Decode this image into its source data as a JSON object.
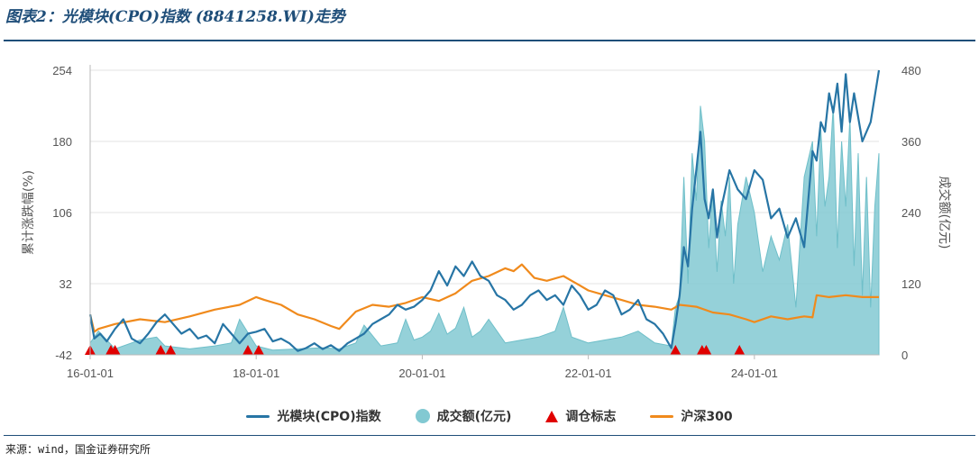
{
  "title": "图表2：光模块(CPO)指数 (8841258.WI)走势",
  "source": "来源：wind，国金证券研究所",
  "colors": {
    "index": "#2775a5",
    "volume": "#82c9d2",
    "marker": "#e00000",
    "hs300": "#f08a1c",
    "rule": "#1f4e79"
  },
  "chart_data": {
    "type": "line",
    "left_axis": {
      "label": "累计涨跌幅(%)",
      "ticks": [
        "254",
        "180",
        "106",
        "32",
        "-42"
      ],
      "range": [
        -42,
        254
      ]
    },
    "right_axis": {
      "label": "成交额(亿元)",
      "ticks": [
        "480",
        "360",
        "240",
        "120",
        "0"
      ],
      "range": [
        0,
        480
      ]
    },
    "x_ticks": [
      "16-01-01",
      "18-01-01",
      "20-01-01",
      "22-01-01",
      "24-01-01"
    ],
    "x_range": [
      2016.0,
      2025.5
    ],
    "legend": [
      {
        "name": "光模块(CPO)指数",
        "kind": "line",
        "color": "#2775a5"
      },
      {
        "name": "成交额(亿元)",
        "kind": "dot",
        "color": "#82c9d2"
      },
      {
        "name": "调仓标志",
        "kind": "triangle",
        "color": "#e00000"
      },
      {
        "name": "沪深300",
        "kind": "line",
        "color": "#f08a1c"
      }
    ],
    "series": [
      {
        "name": "光模块(CPO)指数",
        "axis": "left",
        "x": [
          2016.0,
          2016.05,
          2016.12,
          2016.2,
          2016.3,
          2016.4,
          2016.5,
          2016.6,
          2016.7,
          2016.8,
          2016.9,
          2017.0,
          2017.1,
          2017.2,
          2017.3,
          2017.4,
          2017.5,
          2017.6,
          2017.7,
          2017.8,
          2017.9,
          2018.0,
          2018.1,
          2018.2,
          2018.3,
          2018.4,
          2018.5,
          2018.6,
          2018.7,
          2018.8,
          2018.9,
          2019.0,
          2019.1,
          2019.2,
          2019.3,
          2019.4,
          2019.5,
          2019.6,
          2019.7,
          2019.8,
          2019.9,
          2020.0,
          2020.1,
          2020.2,
          2020.3,
          2020.4,
          2020.5,
          2020.6,
          2020.7,
          2020.8,
          2020.9,
          2021.0,
          2021.1,
          2021.2,
          2021.3,
          2021.4,
          2021.5,
          2021.6,
          2021.7,
          2021.8,
          2021.9,
          2022.0,
          2022.1,
          2022.2,
          2022.3,
          2022.4,
          2022.5,
          2022.6,
          2022.7,
          2022.8,
          2022.9,
          2023.0,
          2023.05,
          2023.1,
          2023.15,
          2023.2,
          2023.25,
          2023.3,
          2023.35,
          2023.4,
          2023.45,
          2023.5,
          2023.55,
          2023.6,
          2023.7,
          2023.8,
          2023.9,
          2024.0,
          2024.1,
          2024.2,
          2024.3,
          2024.4,
          2024.5,
          2024.6,
          2024.7,
          2024.75,
          2024.8,
          2024.85,
          2024.9,
          2024.95,
          2025.0,
          2025.05,
          2025.1,
          2025.15,
          2025.2,
          2025.3,
          2025.4,
          2025.5
        ],
        "values": [
          0,
          -25,
          -20,
          -28,
          -15,
          -5,
          -25,
          -30,
          -20,
          -8,
          0,
          -10,
          -20,
          -15,
          -25,
          -22,
          -30,
          -10,
          -20,
          -30,
          -20,
          -18,
          -15,
          -28,
          -25,
          -30,
          -38,
          -35,
          -30,
          -36,
          -32,
          -38,
          -30,
          -25,
          -20,
          -10,
          -5,
          0,
          10,
          5,
          8,
          15,
          25,
          45,
          30,
          50,
          40,
          55,
          40,
          35,
          20,
          15,
          5,
          10,
          20,
          25,
          15,
          20,
          10,
          30,
          20,
          5,
          10,
          25,
          20,
          0,
          5,
          15,
          -5,
          -10,
          -20,
          -35,
          -10,
          20,
          70,
          50,
          110,
          150,
          190,
          120,
          100,
          130,
          80,
          110,
          150,
          130,
          120,
          150,
          140,
          100,
          110,
          80,
          100,
          70,
          170,
          160,
          200,
          190,
          230,
          210,
          240,
          190,
          250,
          200,
          230,
          180,
          200,
          254
        ]
      },
      {
        "name": "沪深300",
        "axis": "left",
        "x": [
          2016.0,
          2016.05,
          2016.1,
          2016.3,
          2016.6,
          2016.9,
          2017.2,
          2017.5,
          2017.8,
          2018.0,
          2018.1,
          2018.3,
          2018.5,
          2018.7,
          2018.9,
          2019.0,
          2019.2,
          2019.4,
          2019.6,
          2019.8,
          2020.0,
          2020.2,
          2020.4,
          2020.6,
          2020.8,
          2021.0,
          2021.1,
          2021.2,
          2021.35,
          2021.5,
          2021.7,
          2021.9,
          2022.0,
          2022.2,
          2022.4,
          2022.6,
          2022.8,
          2023.0,
          2023.1,
          2023.3,
          2023.5,
          2023.7,
          2023.9,
          2024.0,
          2024.2,
          2024.4,
          2024.6,
          2024.7,
          2024.75,
          2024.9,
          2025.1,
          2025.3,
          2025.5
        ],
        "values": [
          0,
          -18,
          -15,
          -10,
          -5,
          -8,
          -2,
          5,
          10,
          18,
          15,
          10,
          0,
          -5,
          -12,
          -15,
          3,
          10,
          8,
          12,
          18,
          14,
          22,
          35,
          40,
          48,
          45,
          52,
          38,
          35,
          40,
          30,
          25,
          20,
          15,
          10,
          8,
          5,
          10,
          8,
          2,
          0,
          -5,
          -8,
          -2,
          -5,
          -2,
          -3,
          20,
          18,
          20,
          18,
          18
        ]
      },
      {
        "name": "成交额(亿元)",
        "axis": "right",
        "x": [
          2016.0,
          2016.1,
          2016.3,
          2016.6,
          2016.8,
          2016.9,
          2017.2,
          2017.5,
          2017.7,
          2017.8,
          2018.0,
          2018.2,
          2018.5,
          2018.8,
          2019.0,
          2019.2,
          2019.3,
          2019.5,
          2019.7,
          2019.8,
          2019.9,
          2020.0,
          2020.1,
          2020.2,
          2020.3,
          2020.4,
          2020.5,
          2020.6,
          2020.7,
          2020.8,
          2021.0,
          2021.2,
          2021.4,
          2021.6,
          2021.7,
          2021.8,
          2022.0,
          2022.2,
          2022.4,
          2022.6,
          2022.8,
          2023.0,
          2023.05,
          2023.1,
          2023.15,
          2023.2,
          2023.25,
          2023.3,
          2023.35,
          2023.4,
          2023.45,
          2023.5,
          2023.55,
          2023.6,
          2023.65,
          2023.7,
          2023.75,
          2023.8,
          2023.9,
          2024.0,
          2024.1,
          2024.2,
          2024.3,
          2024.4,
          2024.5,
          2024.6,
          2024.7,
          2024.75,
          2024.8,
          2024.85,
          2024.9,
          2024.95,
          2025.0,
          2025.05,
          2025.1,
          2025.15,
          2025.2,
          2025.25,
          2025.3,
          2025.35,
          2025.4,
          2025.45,
          2025.5
        ],
        "values": [
          20,
          40,
          10,
          25,
          30,
          15,
          10,
          15,
          20,
          60,
          15,
          8,
          10,
          12,
          10,
          20,
          50,
          15,
          20,
          60,
          25,
          30,
          40,
          70,
          35,
          45,
          80,
          30,
          40,
          60,
          20,
          25,
          30,
          40,
          80,
          30,
          20,
          25,
          30,
          40,
          20,
          15,
          80,
          100,
          300,
          120,
          340,
          260,
          420,
          360,
          180,
          280,
          140,
          260,
          200,
          300,
          120,
          220,
          300,
          240,
          140,
          200,
          160,
          220,
          80,
          300,
          360,
          200,
          380,
          250,
          300,
          420,
          180,
          360,
          250,
          400,
          150,
          340,
          100,
          300,
          80,
          250,
          340
        ]
      }
    ],
    "markers": {
      "name": "调仓标志",
      "x": [
        2016.0,
        2016.25,
        2016.3,
        2016.85,
        2016.97,
        2017.9,
        2018.03,
        2023.05,
        2023.37,
        2023.42,
        2023.82
      ]
    }
  }
}
